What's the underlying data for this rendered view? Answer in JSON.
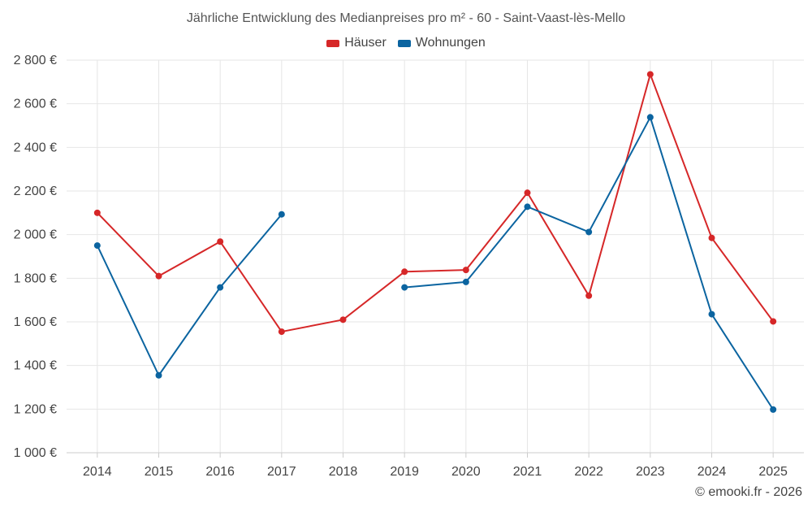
{
  "colors": {
    "houses": "#d62728",
    "apartments": "#0b64a0",
    "grid": "#e6e6e6",
    "axis": "#cccccc",
    "text": "#444444"
  },
  "chart_data": {
    "type": "line",
    "title": "Jährliche Entwicklung des Medianpreises pro m² - 60 - Saint-Vaast-lès-Mello",
    "xlabel": "",
    "ylabel": "",
    "categories": [
      "2014",
      "2015",
      "2016",
      "2017",
      "2018",
      "2019",
      "2020",
      "2021",
      "2022",
      "2023",
      "2024",
      "2025"
    ],
    "ylim": [
      1000,
      2800
    ],
    "yticks": [
      1000,
      1200,
      1400,
      1600,
      1800,
      2000,
      2200,
      2400,
      2600,
      2800
    ],
    "ytick_labels": [
      "1 000 €",
      "1 200 €",
      "1 400 €",
      "1 600 €",
      "1 800 €",
      "2 000 €",
      "2 200 €",
      "2 400 €",
      "2 600 €",
      "2 800 €"
    ],
    "grid": true,
    "legend_position": "top-center",
    "series": [
      {
        "name": "Häuser",
        "key": "houses",
        "values": [
          2100,
          1810,
          1968,
          1555,
          1610,
          1830,
          1838,
          2192,
          1720,
          2735,
          1985,
          1602
        ]
      },
      {
        "name": "Wohnungen",
        "key": "apartments",
        "values": [
          1950,
          1355,
          1758,
          2093,
          null,
          1758,
          1783,
          2128,
          2012,
          2538,
          1635,
          1198
        ]
      }
    ]
  },
  "credit": "© emooki.fr - 2026"
}
